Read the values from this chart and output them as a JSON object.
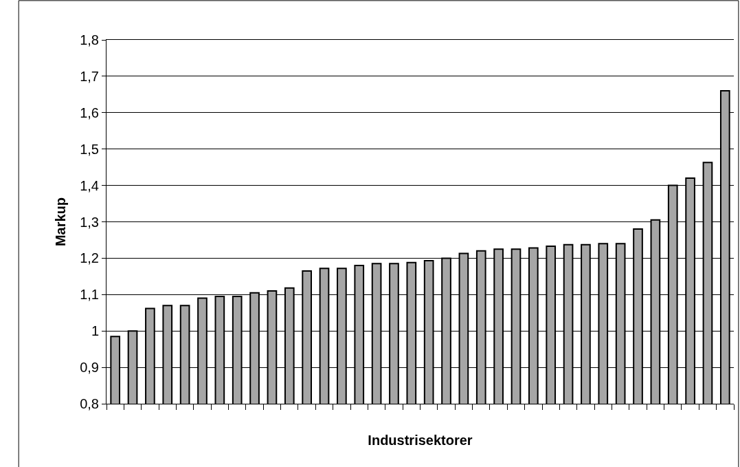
{
  "chart_data": {
    "type": "bar",
    "xlabel": "Industrisektorer",
    "ylabel": "Markup",
    "categories": [
      null,
      null,
      null,
      null,
      null,
      null,
      null,
      null,
      null,
      null,
      null,
      null,
      null,
      null,
      null,
      null,
      null,
      null,
      null,
      null,
      null,
      null,
      null,
      null,
      null,
      null,
      null,
      null,
      null,
      null,
      null,
      null,
      null,
      null,
      null,
      null
    ],
    "values": [
      0.985,
      1.0,
      1.062,
      1.07,
      1.07,
      1.09,
      1.095,
      1.095,
      1.105,
      1.11,
      1.118,
      1.165,
      1.172,
      1.172,
      1.18,
      1.185,
      1.185,
      1.188,
      1.193,
      1.2,
      1.213,
      1.22,
      1.225,
      1.225,
      1.228,
      1.233,
      1.237,
      1.237,
      1.24,
      1.24,
      1.28,
      1.305,
      1.4,
      1.42,
      1.463,
      1.66
    ],
    "color": "#a6a6a6",
    "ylim": [
      0.8,
      1.8
    ],
    "yticks": [
      {
        "value": 0.8,
        "label": "0,8"
      },
      {
        "value": 0.9,
        "label": "0,9"
      },
      {
        "value": 1,
        "label": "1"
      },
      {
        "value": 1.1,
        "label": "1,1"
      },
      {
        "value": 1.2,
        "label": "1,2"
      },
      {
        "value": 1.3,
        "label": "1,3"
      },
      {
        "value": 1.4,
        "label": "1,4"
      },
      {
        "value": 1.5,
        "label": "1,5"
      },
      {
        "value": 1.6,
        "label": "1,6"
      },
      {
        "value": 1.7,
        "label": "1,7"
      },
      {
        "value": 1.8,
        "label": "1,8"
      }
    ],
    "grid": "y"
  }
}
